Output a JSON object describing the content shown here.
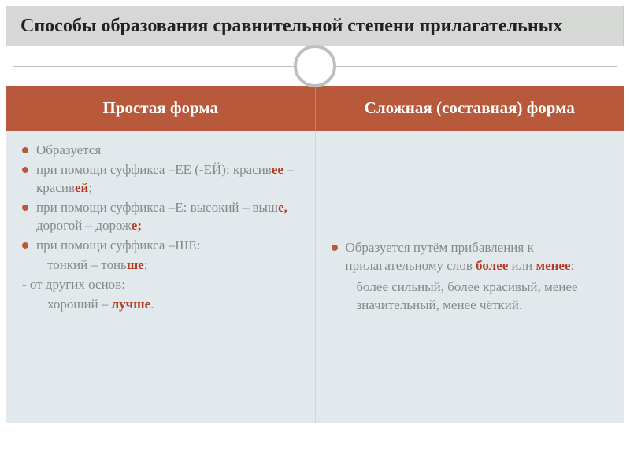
{
  "title": "Способы образования сравнительной степени прилагательных",
  "headers": {
    "left": "Простая форма",
    "right": "Сложная (составная) форма"
  },
  "left": {
    "b1": "Образуется",
    "b2a": "при помощи суффикса –ЕЕ (-ЕЙ): красив",
    "b2hl1": "ее",
    "b2mid": " – красив",
    "b2hl2": "ей",
    "b2end": ";",
    "b3a": "при помощи суффикса –Е: высокий – выш",
    "b3hl1": "е,",
    "b3mid": " дорогой – дорож",
    "b3hl2": "е;",
    "b4a": "при помощи суффикса –ШЕ:",
    "b4ind_a": "тонкий – тонь",
    "b4ind_hl": "ше",
    "b4ind_end": ";",
    "dash_a": "-  от других  основ:",
    "dash_ind_a": "хороший – ",
    "dash_ind_hl": "лучше",
    "dash_ind_end": "."
  },
  "right": {
    "r1a": "Образуется путём прибавления к прилагательному  слов ",
    "r1hl1": "более",
    "r1mid": " или ",
    "r1hl2": "менее",
    "r1end": ":",
    "r2": "более сильный, более красивый, менее значительный, менее чёткий."
  },
  "colors": {
    "title_bg": "#d6d8d5",
    "header_bg": "#b8593c",
    "body_bg": "#e2e9ec",
    "highlight": "#b73a25",
    "body_text": "#888888"
  }
}
